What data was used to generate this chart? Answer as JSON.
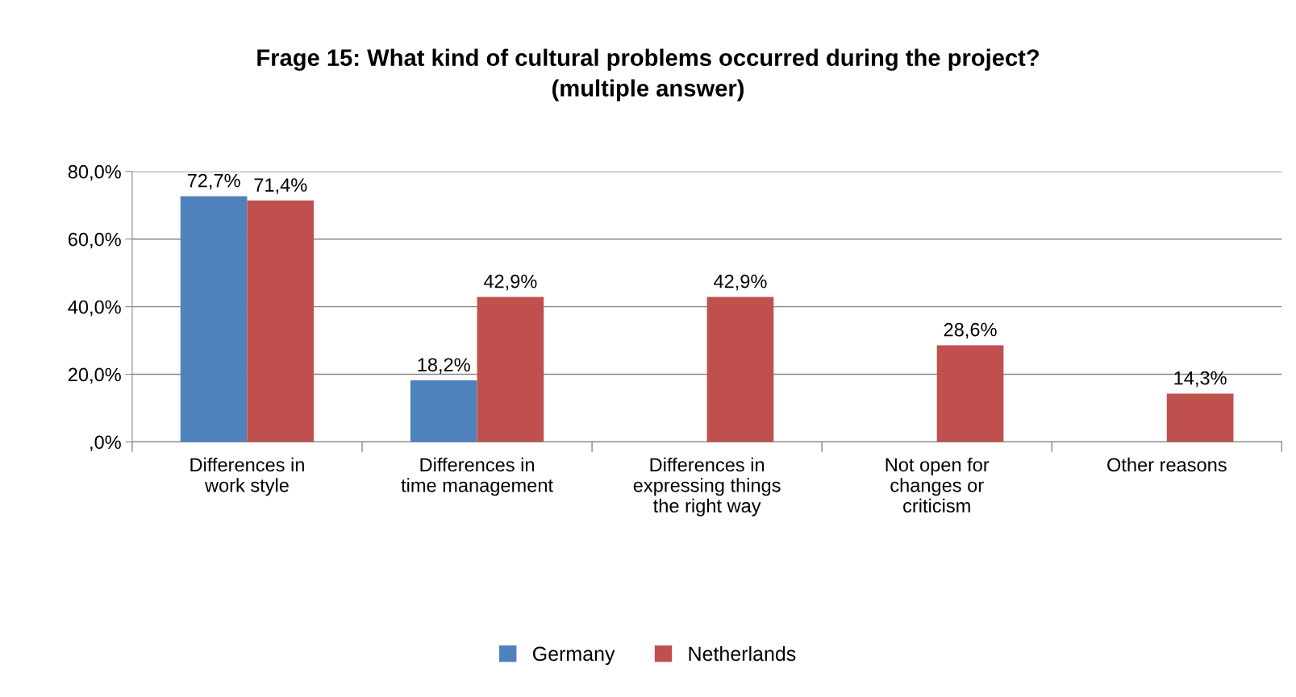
{
  "chart_data": {
    "type": "bar",
    "title": "Frage 15: What kind of cultural problems occurred during the project?\n(multiple answer)",
    "categories": [
      "Differences in\nwork style",
      "Differences in\ntime management",
      "Differences in\nexpressing things\nthe right way",
      "Not open for\nchanges or\ncriticism",
      "Other reasons"
    ],
    "series": [
      {
        "name": "Germany",
        "color": "#4f81bd",
        "values": [
          72.7,
          18.2,
          null,
          null,
          null
        ],
        "value_labels": [
          "72,7%",
          "18,2%",
          null,
          null,
          null
        ]
      },
      {
        "name": "Netherlands",
        "color": "#c0504d",
        "values": [
          71.4,
          42.9,
          42.9,
          28.6,
          14.3
        ],
        "value_labels": [
          "71,4%",
          "42,9%",
          "42,9%",
          "28,6%",
          "14,3%"
        ]
      }
    ],
    "ylim": [
      0,
      80
    ],
    "yticks": [
      {
        "value": 0,
        "label": ",0%"
      },
      {
        "value": 20,
        "label": "20,0%"
      },
      {
        "value": 40,
        "label": "40,0%"
      },
      {
        "value": 60,
        "label": "60,0%"
      },
      {
        "value": 80,
        "label": "80,0%"
      }
    ],
    "grid": "y",
    "legend": "bottom"
  }
}
